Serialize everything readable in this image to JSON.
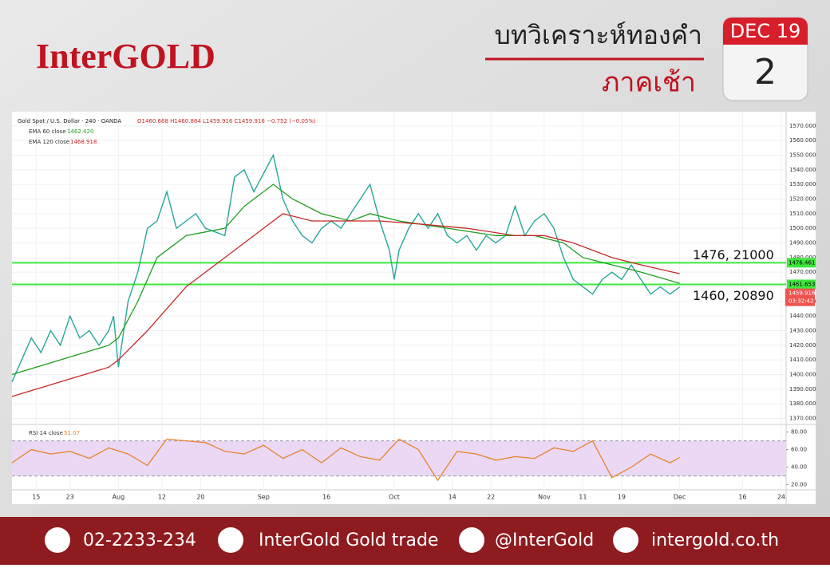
{
  "header": {
    "logo": "InterGOLD",
    "title": "บทวิเคราะห์ทองคำ",
    "subtitle": "ภาคเช้า",
    "month": "DEC 19",
    "day": "2"
  },
  "chart_data": [
    {
      "type": "line",
      "title": "Gold Spot / U.S. Dollar · 240 · OANDA",
      "ohlc": "O1460.668 H1460.884 L1459.916 C1459.916 −0.752 (−0.05%)",
      "xlim": [
        0,
        160
      ],
      "xticks": [
        {
          "value": 5,
          "label": "15"
        },
        {
          "value": 12,
          "label": "23"
        },
        {
          "value": 22,
          "label": "Aug"
        },
        {
          "value": 31,
          "label": "12"
        },
        {
          "value": 39,
          "label": "20"
        },
        {
          "value": 52,
          "label": "Sep"
        },
        {
          "value": 65,
          "label": "16"
        },
        {
          "value": 79,
          "label": "Oct"
        },
        {
          "value": 91,
          "label": "14"
        },
        {
          "value": 99,
          "label": "22"
        },
        {
          "value": 110,
          "label": "Nov"
        },
        {
          "value": 118,
          "label": "11"
        },
        {
          "value": 126,
          "label": "19"
        },
        {
          "value": 138,
          "label": "Dec"
        },
        {
          "value": 151,
          "label": "16"
        },
        {
          "value": 159,
          "label": "24"
        }
      ],
      "ylim": [
        1367,
        1577
      ],
      "yticks": [
        {
          "value": 1370,
          "label": "1370.000"
        },
        {
          "value": 1380,
          "label": "1380.000"
        },
        {
          "value": 1390,
          "label": "1390.000"
        },
        {
          "value": 1400,
          "label": "1400.000"
        },
        {
          "value": 1410,
          "label": "1410.000"
        },
        {
          "value": 1420,
          "label": "1420.000"
        },
        {
          "value": 1430,
          "label": "1430.000"
        },
        {
          "value": 1440,
          "label": "1440.000"
        },
        {
          "value": 1450,
          "label": "1450.000"
        },
        {
          "value": 1460,
          "label": "1460.000"
        },
        {
          "value": 1470,
          "label": "1470.000"
        },
        {
          "value": 1480,
          "label": "1480.000"
        },
        {
          "value": 1490,
          "label": "1490.000"
        },
        {
          "value": 1500,
          "label": "1500.000"
        },
        {
          "value": 1510,
          "label": "1510.000"
        },
        {
          "value": 1520,
          "label": "1520.000"
        },
        {
          "value": 1530,
          "label": "1530.000"
        },
        {
          "value": 1540,
          "label": "1540.000"
        },
        {
          "value": 1550,
          "label": "1550.000"
        },
        {
          "value": 1560,
          "label": "1560.000"
        },
        {
          "value": 1570,
          "label": "1570.000"
        }
      ],
      "grid": true,
      "series": [
        {
          "color": "#26a69a",
          "x": [
            0,
            4,
            6,
            8,
            10,
            12,
            14,
            16,
            18,
            20,
            21,
            22,
            24,
            26,
            28,
            30,
            32,
            34,
            36,
            38,
            40,
            44,
            46,
            48,
            50,
            54,
            56,
            58,
            60,
            62,
            64,
            66,
            68,
            70,
            72,
            74,
            76,
            78,
            79,
            80,
            82,
            84,
            86,
            88,
            90,
            92,
            94,
            96,
            98,
            100,
            102,
            104,
            106,
            108,
            110,
            112,
            114,
            116,
            118,
            120,
            122,
            124,
            126,
            128,
            130,
            132,
            134,
            136,
            138
          ],
          "values": [
            1395,
            1425,
            1415,
            1430,
            1420,
            1440,
            1425,
            1430,
            1420,
            1430,
            1440,
            1405,
            1450,
            1470,
            1500,
            1505,
            1525,
            1500,
            1505,
            1510,
            1500,
            1495,
            1535,
            1540,
            1525,
            1550,
            1520,
            1505,
            1495,
            1490,
            1500,
            1505,
            1500,
            1510,
            1520,
            1530,
            1505,
            1485,
            1465,
            1485,
            1500,
            1510,
            1500,
            1510,
            1495,
            1490,
            1495,
            1485,
            1495,
            1490,
            1495,
            1515,
            1495,
            1505,
            1510,
            1500,
            1480,
            1465,
            1460,
            1455,
            1465,
            1470,
            1465,
            1475,
            1465,
            1455,
            1460,
            1455,
            1459.916
          ]
        },
        {
          "name": "EMA 60 close",
          "legend_value": "1462.420",
          "color": "#1e9e1e",
          "x": [
            0,
            10,
            20,
            22,
            26,
            30,
            36,
            44,
            48,
            54,
            58,
            64,
            70,
            74,
            80,
            90,
            100,
            108,
            114,
            118,
            124,
            130,
            138
          ],
          "values": [
            1400,
            1410,
            1420,
            1425,
            1450,
            1480,
            1495,
            1500,
            1515,
            1530,
            1520,
            1510,
            1505,
            1510,
            1505,
            1500,
            1495,
            1495,
            1490,
            1480,
            1475,
            1470,
            1462.42
          ]
        },
        {
          "name": "EMA 120 close",
          "legend_value": "1468.918",
          "color": "#c62828",
          "x": [
            0,
            10,
            20,
            22,
            28,
            36,
            44,
            50,
            56,
            62,
            70,
            76,
            84,
            94,
            104,
            110,
            116,
            124,
            130,
            138
          ],
          "values": [
            1385,
            1395,
            1405,
            1410,
            1430,
            1460,
            1480,
            1495,
            1510,
            1505,
            1505,
            1505,
            1503,
            1500,
            1495,
            1495,
            1490,
            1480,
            1475,
            1468.918
          ]
        }
      ],
      "levels": [
        {
          "value": 1476.461,
          "note": "1476, 21000"
        },
        {
          "value": 1461.653,
          "note": "1460, 20890"
        }
      ],
      "level_color": "#3de83d",
      "price_tag": "1459.916",
      "countdown": "03:32:42"
    },
    {
      "type": "line",
      "title": "RSI 14 close",
      "ylim": [
        16,
        86
      ],
      "yticks": [
        {
          "value": 20,
          "label": "20.00"
        },
        {
          "value": 40,
          "label": "40.00"
        },
        {
          "value": 60,
          "label": "60.00"
        },
        {
          "value": 80,
          "label": "80.00"
        }
      ],
      "band": [
        30,
        70
      ],
      "band_color": "#ead8f5",
      "series": [
        {
          "color": "#e8832a",
          "x": [
            0,
            4,
            8,
            12,
            16,
            20,
            24,
            28,
            32,
            36,
            40,
            44,
            48,
            52,
            56,
            60,
            64,
            68,
            72,
            76,
            80,
            84,
            88,
            92,
            96,
            100,
            104,
            108,
            112,
            116,
            120,
            124,
            128,
            132,
            136,
            138
          ],
          "values": [
            45,
            60,
            55,
            58,
            50,
            62,
            55,
            42,
            72,
            70,
            68,
            58,
            55,
            65,
            50,
            60,
            45,
            62,
            52,
            48,
            72,
            60,
            25,
            58,
            55,
            48,
            52,
            50,
            62,
            58,
            70,
            28,
            40,
            55,
            45,
            51.07
          ]
        }
      ]
    }
  ],
  "footer": {
    "items": [
      "02-2233-234",
      "InterGold Gold trade",
      "@InterGold",
      "intergold.co.th"
    ]
  }
}
